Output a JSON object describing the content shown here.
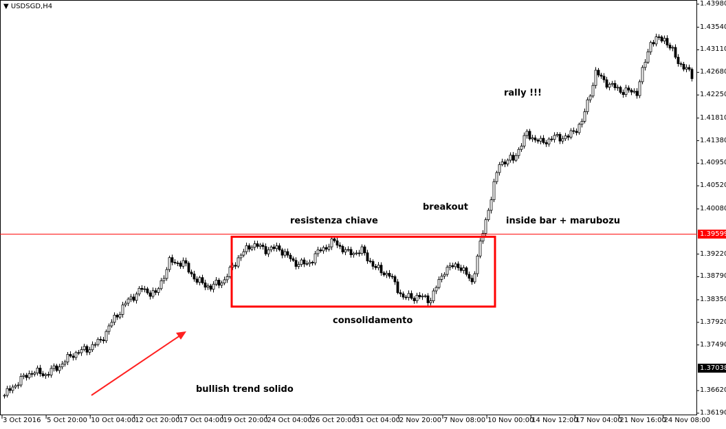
{
  "window": {
    "symbol_label": "USDSGD,H4"
  },
  "colors": {
    "bull_body": "#ffffff",
    "bear_body": "#000000",
    "resistance": "#ff0000",
    "annotation": "#ff0000",
    "current_price_tag": "#000000"
  },
  "chart_data": {
    "type": "candlestick",
    "title": "USDSGD,H4",
    "ylim": [
      1.3619,
      1.4398
    ],
    "y_ticks": [
      "1.43980",
      "1.43540",
      "1.43110",
      "1.42680",
      "1.42250",
      "1.41810",
      "1.41380",
      "1.40950",
      "1.40520",
      "1.40080",
      "1.39220",
      "1.38790",
      "1.38350",
      "1.37920",
      "1.37490",
      "1.36620",
      "1.36190"
    ],
    "x_ticks": [
      "3 Oct 2016",
      "5 Oct 20:00",
      "10 Oct 04:00",
      "12 Oct 20:00",
      "17 Oct 04:00",
      "19 Oct 20:00",
      "24 Oct 04:00",
      "26 Oct 20:00",
      "31 Oct 04:00",
      "2 Nov 20:00",
      "7 Nov 08:00",
      "10 Nov 00:00",
      "14 Nov 12:00",
      "17 Nov 04:00",
      "21 Nov 16:00",
      "24 Nov 08:00"
    ],
    "approx_close_path": [
      1.3653,
      1.3679,
      1.3698,
      1.3693,
      1.3709,
      1.3732,
      1.3741,
      1.3757,
      1.38,
      1.3834,
      1.3855,
      1.3845,
      1.3907,
      1.3905,
      1.3871,
      1.3859,
      1.3873,
      1.3915,
      1.3941,
      1.3931,
      1.3933,
      1.3907,
      1.3902,
      1.393,
      1.3946,
      1.3923,
      1.3928,
      1.3895,
      1.3882,
      1.3839,
      1.3841,
      1.3836,
      1.3892,
      1.3902,
      1.3869,
      1.3987,
      1.4096,
      1.4103,
      1.4151,
      1.4134,
      1.4144,
      1.4145,
      1.4173,
      1.4267,
      1.4244,
      1.4232,
      1.4231,
      1.4327,
      1.4333,
      1.4289,
      1.4262
    ],
    "resistance_line": {
      "price": 1.39599,
      "label": "1.39599"
    },
    "current_price": {
      "price": 1.37038,
      "label": "1.37038"
    },
    "consolidation_box": {
      "price_top": 1.3955,
      "price_bottom": 1.3822,
      "from": "19 Oct 20:00",
      "to": "10 Nov 00:00"
    },
    "annotations": {
      "resistance": "resistenza chiave",
      "consolidation": "consolidamento",
      "breakout": "breakout",
      "inside_bar": "inside bar + marubozu",
      "rally": "rally !!!",
      "trend": "bullish trend solido"
    }
  }
}
